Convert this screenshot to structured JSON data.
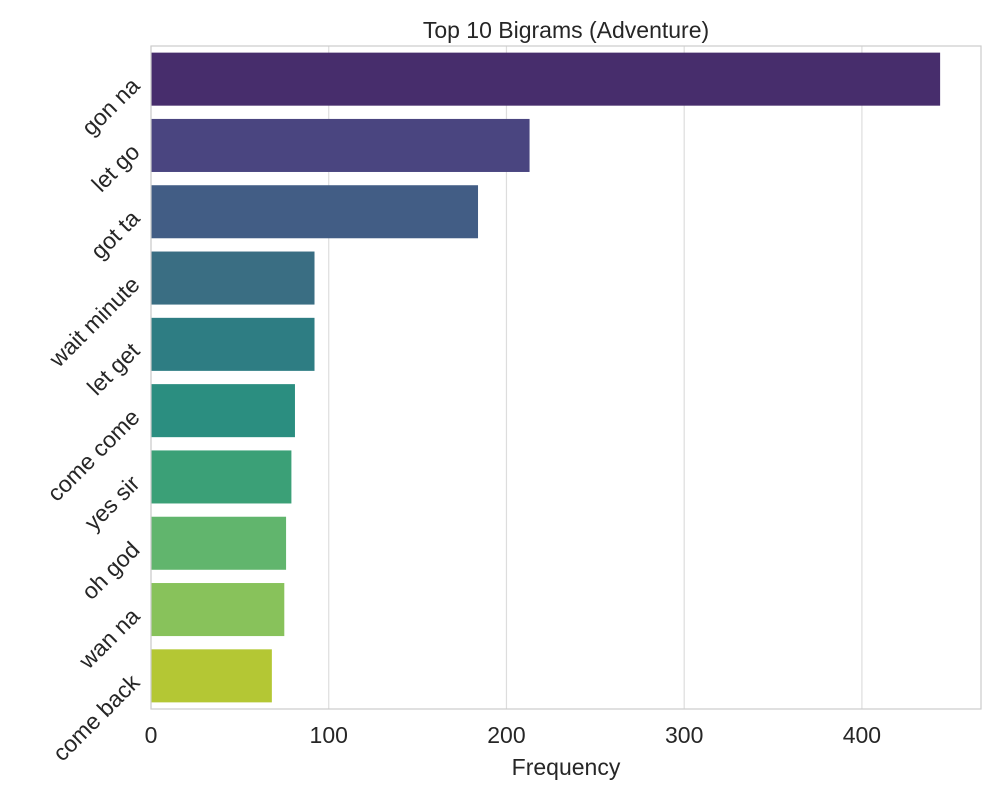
{
  "chart_data": {
    "type": "bar",
    "orientation": "horizontal",
    "title": "Top 10 Bigrams (Adventure)",
    "xlabel": "Frequency",
    "ylabel": "",
    "categories": [
      "gon na",
      "let go",
      "got ta",
      "wait minute",
      "let get",
      "come come",
      "yes sir",
      "oh god",
      "wan na",
      "come back"
    ],
    "values": [
      444,
      213,
      184,
      92,
      92,
      81,
      79,
      76,
      75,
      68
    ],
    "colors": [
      "#472d6c",
      "#4a4580",
      "#425d85",
      "#3a6e83",
      "#2e7d83",
      "#2b8e80",
      "#3ba077",
      "#61b56d",
      "#88c25b",
      "#b4c734"
    ],
    "xlim": [
      0,
      467
    ],
    "xticks": [
      0,
      100,
      200,
      300,
      400
    ],
    "grid": "vertical",
    "legend": "none"
  }
}
